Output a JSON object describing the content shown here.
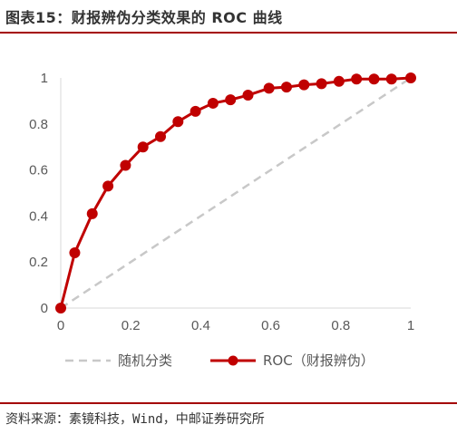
{
  "header": {
    "title": "图表15：财报辨伪分类效果的 ROC 曲线"
  },
  "footer": {
    "source": "资料来源：素镜科技，Wind，中邮证券研究所"
  },
  "colors": {
    "accent": "#a40000",
    "roc": "#c00000",
    "random": "#c8c8c8",
    "axis": "#d9d9d9"
  },
  "chart_data": {
    "type": "line",
    "xlim": [
      0,
      1
    ],
    "ylim": [
      0,
      1
    ],
    "x_ticks": [
      "0",
      "0.2",
      "0.4",
      "0.6",
      "0.8",
      "1"
    ],
    "y_ticks": [
      "0",
      "0.2",
      "0.4",
      "0.6",
      "0.8",
      "1"
    ],
    "x_tick_values": [
      0,
      0.2,
      0.4,
      0.6,
      0.8,
      1
    ],
    "y_tick_values": [
      0,
      0.2,
      0.4,
      0.6,
      0.8,
      1
    ],
    "grid": false,
    "legend_position": "bottom",
    "series": [
      {
        "name": "随机分类",
        "style": "dashed",
        "x": [
          0,
          1
        ],
        "y": [
          0,
          1
        ]
      },
      {
        "name": "ROC（财报辨伪）",
        "style": "line-marker",
        "x": [
          0,
          0.04,
          0.09,
          0.135,
          0.185,
          0.235,
          0.285,
          0.335,
          0.385,
          0.435,
          0.485,
          0.535,
          0.595,
          0.645,
          0.695,
          0.745,
          0.795,
          0.845,
          0.895,
          0.945,
          1.0
        ],
        "y": [
          0,
          0.24,
          0.41,
          0.53,
          0.62,
          0.7,
          0.745,
          0.81,
          0.855,
          0.89,
          0.905,
          0.925,
          0.955,
          0.96,
          0.97,
          0.975,
          0.985,
          0.995,
          0.995,
          0.995,
          1.0
        ]
      }
    ]
  }
}
